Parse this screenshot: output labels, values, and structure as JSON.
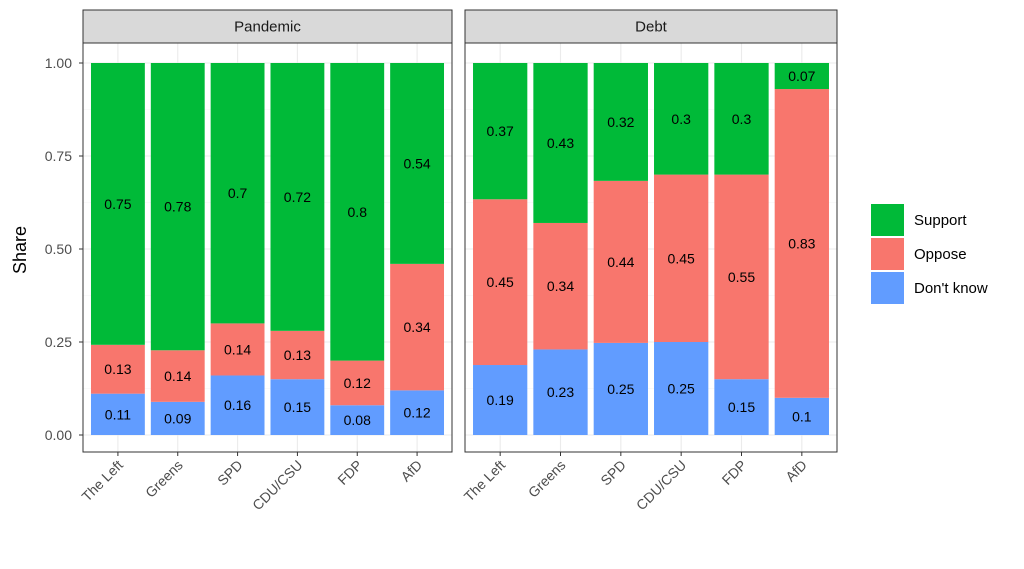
{
  "chart_data": {
    "type": "bar",
    "stacked": true,
    "ylabel": "Share",
    "ylim": [
      0,
      1
    ],
    "yticks": [
      "0.00",
      "0.25",
      "0.50",
      "0.75",
      "1.00"
    ],
    "categories": [
      "The Left",
      "Greens",
      "SPD",
      "CDU/CSU",
      "FDP",
      "AfD"
    ],
    "legend": {
      "position": "right"
    },
    "grid": true,
    "colors": {
      "Support": "#00BA38",
      "Oppose": "#F8766D",
      "Don't know": "#619CFF"
    },
    "panels": [
      {
        "title": "Pandemic",
        "series": [
          {
            "name": "Don't know",
            "values": [
              0.11,
              0.09,
              0.16,
              0.15,
              0.08,
              0.12
            ]
          },
          {
            "name": "Oppose",
            "values": [
              0.13,
              0.14,
              0.14,
              0.13,
              0.12,
              0.34
            ]
          },
          {
            "name": "Support",
            "values": [
              0.75,
              0.78,
              0.7,
              0.72,
              0.8,
              0.54
            ]
          }
        ]
      },
      {
        "title": "Debt",
        "series": [
          {
            "name": "Don't know",
            "values": [
              0.19,
              0.23,
              0.25,
              0.25,
              0.15,
              0.1
            ]
          },
          {
            "name": "Oppose",
            "values": [
              0.45,
              0.34,
              0.44,
              0.45,
              0.55,
              0.83
            ]
          },
          {
            "name": "Support",
            "values": [
              0.37,
              0.43,
              0.32,
              0.3,
              0.3,
              0.07
            ]
          }
        ]
      }
    ],
    "legend_order": [
      "Support",
      "Oppose",
      "Don't know"
    ]
  }
}
